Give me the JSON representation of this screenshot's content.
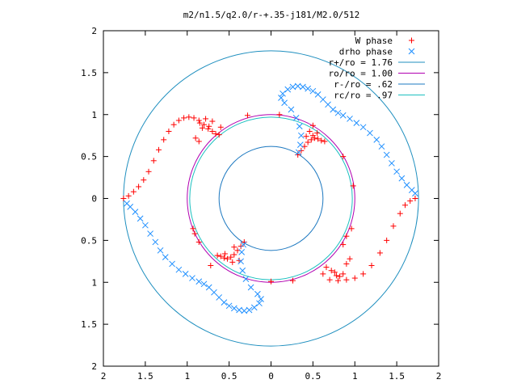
{
  "chart_data": {
    "type": "scatter",
    "title": "m2/n1.5/q2.0/r-+.35-j181/M2.0/512",
    "xlabel": "",
    "ylabel": "",
    "xlim": [
      -2,
      2
    ],
    "ylim": [
      -2,
      2
    ],
    "x_tick_values": [
      -2,
      -1.5,
      -1,
      -0.5,
      0,
      0.5,
      1,
      1.5,
      2
    ],
    "x_tick_labels": [
      "2",
      "1.5",
      "1",
      "0.5",
      "0",
      "0.5",
      "1",
      "1.5",
      "2"
    ],
    "y_tick_values": [
      2,
      1.5,
      1,
      0.5,
      0,
      -0.5,
      -1,
      -1.5,
      -2
    ],
    "y_tick_labels": [
      "2",
      "1.5",
      "1",
      "0.5",
      "0",
      "0.5",
      "1",
      "1.5",
      "2"
    ],
    "grid": false,
    "legend_position": "top-right",
    "series": [
      {
        "name": "W phase",
        "marker": "plus",
        "color": "#ff0000",
        "points": [
          [
            -1.76,
            0.0
          ],
          [
            -1.7,
            0.03
          ],
          [
            -1.64,
            0.08
          ],
          [
            -1.58,
            0.14
          ],
          [
            -1.52,
            0.22
          ],
          [
            -1.46,
            0.32
          ],
          [
            -1.4,
            0.45
          ],
          [
            -1.34,
            0.58
          ],
          [
            -1.28,
            0.7
          ],
          [
            -1.22,
            0.8
          ],
          [
            -1.16,
            0.88
          ],
          [
            -1.1,
            0.93
          ],
          [
            -1.04,
            0.96
          ],
          [
            -0.98,
            0.97
          ],
          [
            -0.92,
            0.96
          ],
          [
            -0.86,
            0.93
          ],
          [
            -0.8,
            0.88
          ],
          [
            -0.75,
            0.83
          ],
          [
            -0.7,
            0.8
          ],
          [
            -0.66,
            0.77
          ],
          [
            -0.62,
            0.76
          ],
          [
            -0.85,
            0.9
          ],
          [
            -0.82,
            0.84
          ],
          [
            -0.78,
            0.95
          ],
          [
            -0.74,
            0.86
          ],
          [
            -0.7,
            0.92
          ],
          [
            -0.9,
            0.72
          ],
          [
            -0.86,
            0.68
          ],
          [
            -0.6,
            0.85
          ],
          [
            -0.28,
            0.99
          ],
          [
            0.1,
            1.0
          ],
          [
            0.5,
            0.87
          ],
          [
            0.86,
            0.5
          ],
          [
            0.98,
            0.15
          ],
          [
            -0.93,
            -0.36
          ],
          [
            -0.91,
            -0.42
          ],
          [
            -0.86,
            -0.52
          ],
          [
            0.32,
            0.52
          ],
          [
            0.36,
            0.57
          ],
          [
            0.4,
            0.62
          ],
          [
            0.44,
            0.67
          ],
          [
            0.48,
            0.7
          ],
          [
            0.52,
            0.72
          ],
          [
            0.56,
            0.71
          ],
          [
            0.6,
            0.69
          ],
          [
            0.64,
            0.68
          ],
          [
            0.46,
            0.8
          ],
          [
            0.5,
            0.75
          ],
          [
            0.55,
            0.78
          ],
          [
            0.42,
            0.74
          ],
          [
            -0.32,
            -0.52
          ],
          [
            -0.36,
            -0.57
          ],
          [
            -0.4,
            -0.62
          ],
          [
            -0.44,
            -0.67
          ],
          [
            -0.48,
            -0.7
          ],
          [
            -0.52,
            -0.72
          ],
          [
            -0.56,
            -0.71
          ],
          [
            -0.6,
            -0.69
          ],
          [
            -0.64,
            -0.68
          ],
          [
            -0.46,
            -0.76
          ],
          [
            -0.38,
            -0.74
          ],
          [
            -0.55,
            -0.66
          ],
          [
            -0.44,
            -0.58
          ],
          [
            -0.72,
            -0.8
          ],
          [
            0.0,
            -0.99
          ],
          [
            0.26,
            -0.98
          ],
          [
            0.62,
            -0.9
          ],
          [
            0.66,
            -0.82
          ],
          [
            0.72,
            -0.86
          ],
          [
            0.78,
            -0.92
          ],
          [
            0.76,
            -0.88
          ],
          [
            0.82,
            -0.93
          ],
          [
            0.86,
            -0.9
          ],
          [
            0.9,
            -0.78
          ],
          [
            0.94,
            -0.72
          ],
          [
            0.86,
            -0.55
          ],
          [
            0.9,
            -0.45
          ],
          [
            0.96,
            -0.36
          ],
          [
            0.7,
            -0.97
          ],
          [
            0.8,
            -0.98
          ],
          [
            0.9,
            -0.97
          ],
          [
            1.0,
            -0.95
          ],
          [
            1.1,
            -0.9
          ],
          [
            1.2,
            -0.8
          ],
          [
            1.3,
            -0.65
          ],
          [
            1.38,
            -0.5
          ],
          [
            1.46,
            -0.33
          ],
          [
            1.54,
            -0.18
          ],
          [
            1.6,
            -0.08
          ],
          [
            1.66,
            -0.03
          ],
          [
            1.72,
            0.0
          ]
        ]
      },
      {
        "name": "drho phase",
        "marker": "cross",
        "color": "#1e8fff",
        "points": [
          [
            1.72,
            0.06
          ],
          [
            1.68,
            0.1
          ],
          [
            1.62,
            0.16
          ],
          [
            1.56,
            0.24
          ],
          [
            1.5,
            0.32
          ],
          [
            1.44,
            0.42
          ],
          [
            1.38,
            0.52
          ],
          [
            1.32,
            0.62
          ],
          [
            1.26,
            0.7
          ],
          [
            1.18,
            0.78
          ],
          [
            1.1,
            0.85
          ],
          [
            1.02,
            0.9
          ],
          [
            0.94,
            0.95
          ],
          [
            0.86,
            0.99
          ],
          [
            0.8,
            1.02
          ],
          [
            0.74,
            1.06
          ],
          [
            0.68,
            1.12
          ],
          [
            0.62,
            1.18
          ],
          [
            0.56,
            1.24
          ],
          [
            0.5,
            1.28
          ],
          [
            0.44,
            1.31
          ],
          [
            0.38,
            1.33
          ],
          [
            0.32,
            1.34
          ],
          [
            0.26,
            1.33
          ],
          [
            0.2,
            1.3
          ],
          [
            0.14,
            1.25
          ],
          [
            0.12,
            1.2
          ],
          [
            0.16,
            1.14
          ],
          [
            0.24,
            1.06
          ],
          [
            0.3,
            0.96
          ],
          [
            0.34,
            0.86
          ],
          [
            0.36,
            0.75
          ],
          [
            0.35,
            0.64
          ],
          [
            0.33,
            0.55
          ],
          [
            -1.72,
            -0.06
          ],
          [
            -1.68,
            -0.1
          ],
          [
            -1.62,
            -0.16
          ],
          [
            -1.56,
            -0.24
          ],
          [
            -1.5,
            -0.32
          ],
          [
            -1.44,
            -0.42
          ],
          [
            -1.38,
            -0.52
          ],
          [
            -1.32,
            -0.62
          ],
          [
            -1.26,
            -0.7
          ],
          [
            -1.18,
            -0.78
          ],
          [
            -1.1,
            -0.85
          ],
          [
            -1.02,
            -0.9
          ],
          [
            -0.94,
            -0.95
          ],
          [
            -0.86,
            -0.99
          ],
          [
            -0.8,
            -1.02
          ],
          [
            -0.74,
            -1.06
          ],
          [
            -0.68,
            -1.12
          ],
          [
            -0.62,
            -1.18
          ],
          [
            -0.56,
            -1.24
          ],
          [
            -0.5,
            -1.28
          ],
          [
            -0.44,
            -1.31
          ],
          [
            -0.38,
            -1.33
          ],
          [
            -0.32,
            -1.34
          ],
          [
            -0.26,
            -1.33
          ],
          [
            -0.2,
            -1.3
          ],
          [
            -0.14,
            -1.25
          ],
          [
            -0.12,
            -1.2
          ],
          [
            -0.16,
            -1.14
          ],
          [
            -0.24,
            -1.06
          ],
          [
            -0.3,
            -0.96
          ],
          [
            -0.34,
            -0.86
          ],
          [
            -0.36,
            -0.75
          ],
          [
            -0.35,
            -0.64
          ],
          [
            -0.33,
            -0.55
          ]
        ]
      }
    ],
    "circles": [
      {
        "name": "r+/ro = 1.76",
        "radius": 1.76,
        "color": "#1f8fbf"
      },
      {
        "name": "ro/ro = 1.00",
        "radius": 1.0,
        "color": "#b000b0"
      },
      {
        "name": "r-/ro = .62",
        "radius": 0.62,
        "color": "#1c78c0"
      },
      {
        "name": "rc/ro = .97",
        "radius": 0.97,
        "color": "#1cc0c0"
      }
    ]
  }
}
